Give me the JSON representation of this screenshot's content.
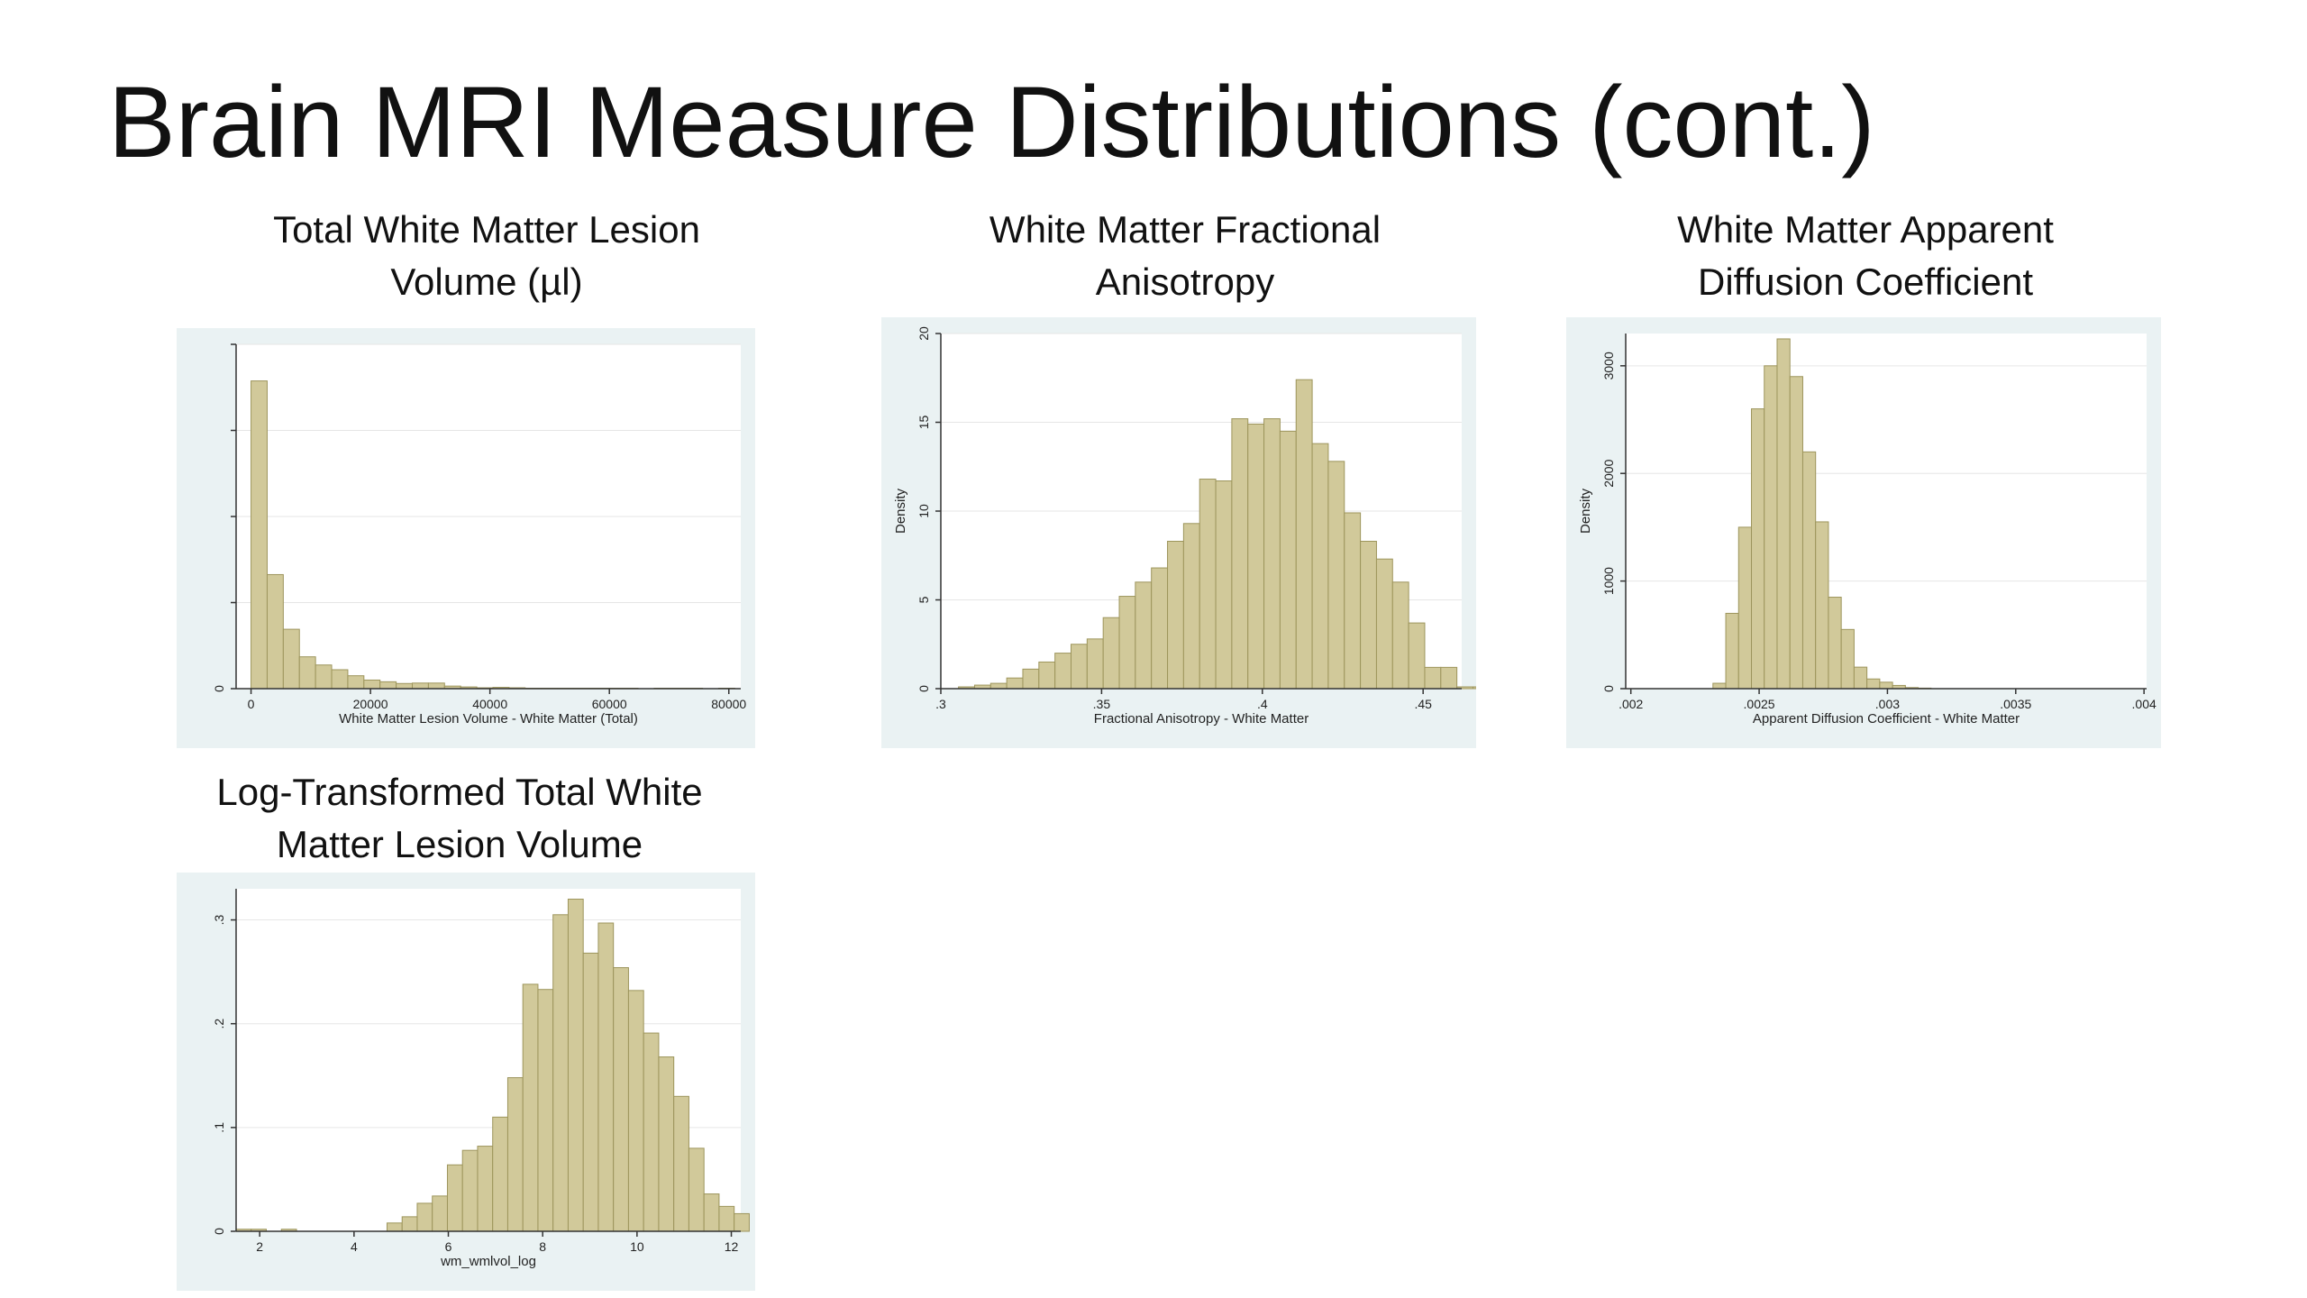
{
  "slide": {
    "title": "Brain MRI Measure Distributions (cont.)"
  },
  "chart_data": [
    {
      "type": "bar",
      "title_lines": [
        "Total White Matter Lesion",
        "Volume (µl)"
      ],
      "xlabel": "White Matter Lesion Volume - White Matter (Total)",
      "ylabel": "",
      "xlim": [
        -2500,
        82000
      ],
      "ylim": [
        0,
        8e-05
      ],
      "xticks": [
        0,
        20000,
        40000,
        60000,
        80000
      ],
      "xtick_labels": [
        "0",
        "20000",
        "40000",
        "60000",
        "80000"
      ],
      "yticks": [
        0,
        2e-05,
        4e-05,
        6e-05,
        8e-05
      ],
      "ytick_labels": [
        "0",
        "",
        "",
        "",
        ""
      ],
      "bin_start": 0,
      "bin_width": 2700,
      "values": [
        7.15e-05,
        2.65e-05,
        1.38e-05,
        7.4e-06,
        5.5e-06,
        4.4e-06,
        3e-06,
        2e-06,
        1.6e-06,
        1.2e-06,
        1.3e-06,
        1.3e-06,
        6e-07,
        4e-07,
        2e-07,
        3e-07,
        2e-07,
        1e-07,
        1e-07,
        1e-07,
        1e-07,
        1e-07,
        1e-07,
        1e-07,
        0,
        1e-07,
        1e-07,
        1e-07,
        0,
        1e-07
      ]
    },
    {
      "type": "bar",
      "title_lines": [
        "White Matter Fractional",
        "Anisotropy"
      ],
      "xlabel": "Fractional Anisotropy - White Matter",
      "ylabel": "Density",
      "xlim": [
        0.3,
        0.462
      ],
      "ylim": [
        0,
        20
      ],
      "xticks": [
        0.3,
        0.35,
        0.4,
        0.45
      ],
      "xtick_labels": [
        ".3",
        ".35",
        ".4",
        ".45"
      ],
      "yticks": [
        0,
        5,
        10,
        15,
        20
      ],
      "ytick_labels": [
        "0",
        "5",
        "10",
        "15",
        "20"
      ],
      "bin_start": 0.3055,
      "bin_width": 0.005,
      "values": [
        0.1,
        0.2,
        0.3,
        0.6,
        1.1,
        1.5,
        2.0,
        2.5,
        2.8,
        4.0,
        5.2,
        6.0,
        6.8,
        8.3,
        9.3,
        11.8,
        11.7,
        15.2,
        14.9,
        15.2,
        14.5,
        17.4,
        13.8,
        12.8,
        9.9,
        8.3,
        7.3,
        6.0,
        3.7,
        1.2,
        1.2,
        0.1,
        0.1
      ]
    },
    {
      "type": "bar",
      "title_lines": [
        "White Matter Apparent",
        "Diffusion Coefficient"
      ],
      "xlabel": "Apparent Diffusion Coefficient - White Matter",
      "ylabel": "Density",
      "xlim": [
        0.00198,
        0.00401
      ],
      "ylim": [
        0,
        3300
      ],
      "xticks": [
        0.002,
        0.0025,
        0.003,
        0.0035,
        0.004
      ],
      "xtick_labels": [
        ".002",
        ".0025",
        ".003",
        ".0035",
        ".004"
      ],
      "yticks": [
        0,
        1000,
        2000,
        3000
      ],
      "ytick_labels": [
        "0",
        "1000",
        "2000",
        "3000"
      ],
      "bin_start": 0.00232,
      "bin_width": 5e-05,
      "values": [
        50,
        700,
        1500,
        2600,
        3000,
        3250,
        2900,
        2200,
        1550,
        850,
        550,
        200,
        90,
        60,
        30,
        10,
        5
      ]
    },
    {
      "type": "bar",
      "title_lines": [
        "Log-Transformed Total White",
        "Matter Lesion Volume"
      ],
      "xlabel": "wm_wmlvol_log",
      "ylabel": "",
      "xlim": [
        1.5,
        12.2
      ],
      "ylim": [
        0,
        0.33
      ],
      "xticks": [
        2,
        4,
        6,
        8,
        10,
        12
      ],
      "xtick_labels": [
        "2",
        "4",
        "6",
        "8",
        "10",
        "12"
      ],
      "yticks": [
        0,
        0.1,
        0.2,
        0.3
      ],
      "ytick_labels": [
        "0",
        ".1",
        ".2",
        ".3"
      ],
      "bin_start": 1.5,
      "bin_width": 0.32,
      "values": [
        0.002,
        0.002,
        0,
        0.002,
        0,
        0,
        0,
        0,
        0,
        0,
        0.008,
        0.014,
        0.027,
        0.034,
        0.064,
        0.078,
        0.082,
        0.11,
        0.148,
        0.238,
        0.233,
        0.305,
        0.32,
        0.268,
        0.297,
        0.254,
        0.232,
        0.191,
        0.168,
        0.13,
        0.08,
        0.036,
        0.024,
        0.017
      ]
    }
  ]
}
